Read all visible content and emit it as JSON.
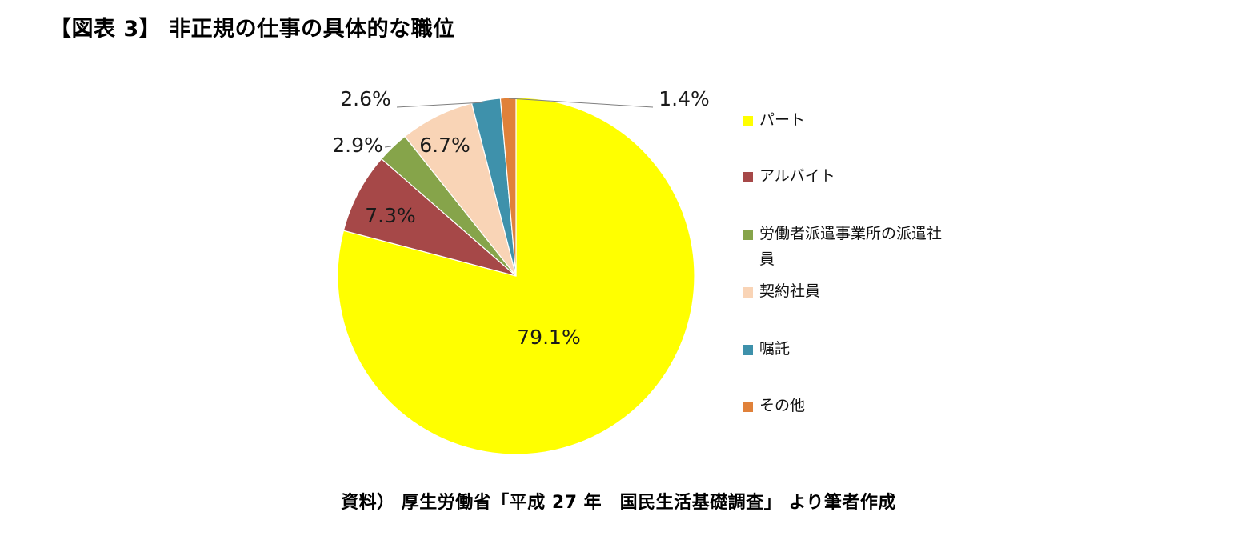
{
  "page": {
    "title": "【図表 3】 非正規の仕事の具体的な職位",
    "source": "資料） 厚生労働省「平成 27 年　国民生活基礎調査」 より筆者作成"
  },
  "chart_data": {
    "type": "pie",
    "title": "",
    "unit": "%",
    "start_angle_deg": 0,
    "direction": "clockwise",
    "legend_position": "right",
    "slices": [
      {
        "label": "パート",
        "value": 79.1,
        "display": "79.1%",
        "color": "#ffff00"
      },
      {
        "label": "アルバイト",
        "value": 7.3,
        "display": "7.3%",
        "color": "#a64848"
      },
      {
        "label": "労働者派遣事業所の派遣社員",
        "value": 2.9,
        "display": "2.9%",
        "color": "#86a44a"
      },
      {
        "label": "契約社員",
        "value": 6.7,
        "display": "6.7%",
        "color": "#f9d4b6"
      },
      {
        "label": "嘱託",
        "value": 2.6,
        "display": "2.6%",
        "color": "#3e91ab"
      },
      {
        "label": "その他",
        "value": 1.4,
        "display": "1.4%",
        "color": "#e0813a"
      }
    ],
    "legend": [
      {
        "text": "パート"
      },
      {
        "text": "アルバイト"
      },
      {
        "text": "労働者派遣事業所の派遣社員"
      },
      {
        "text": "契約社員"
      },
      {
        "text": "嘱託"
      },
      {
        "text": "その他"
      }
    ]
  }
}
